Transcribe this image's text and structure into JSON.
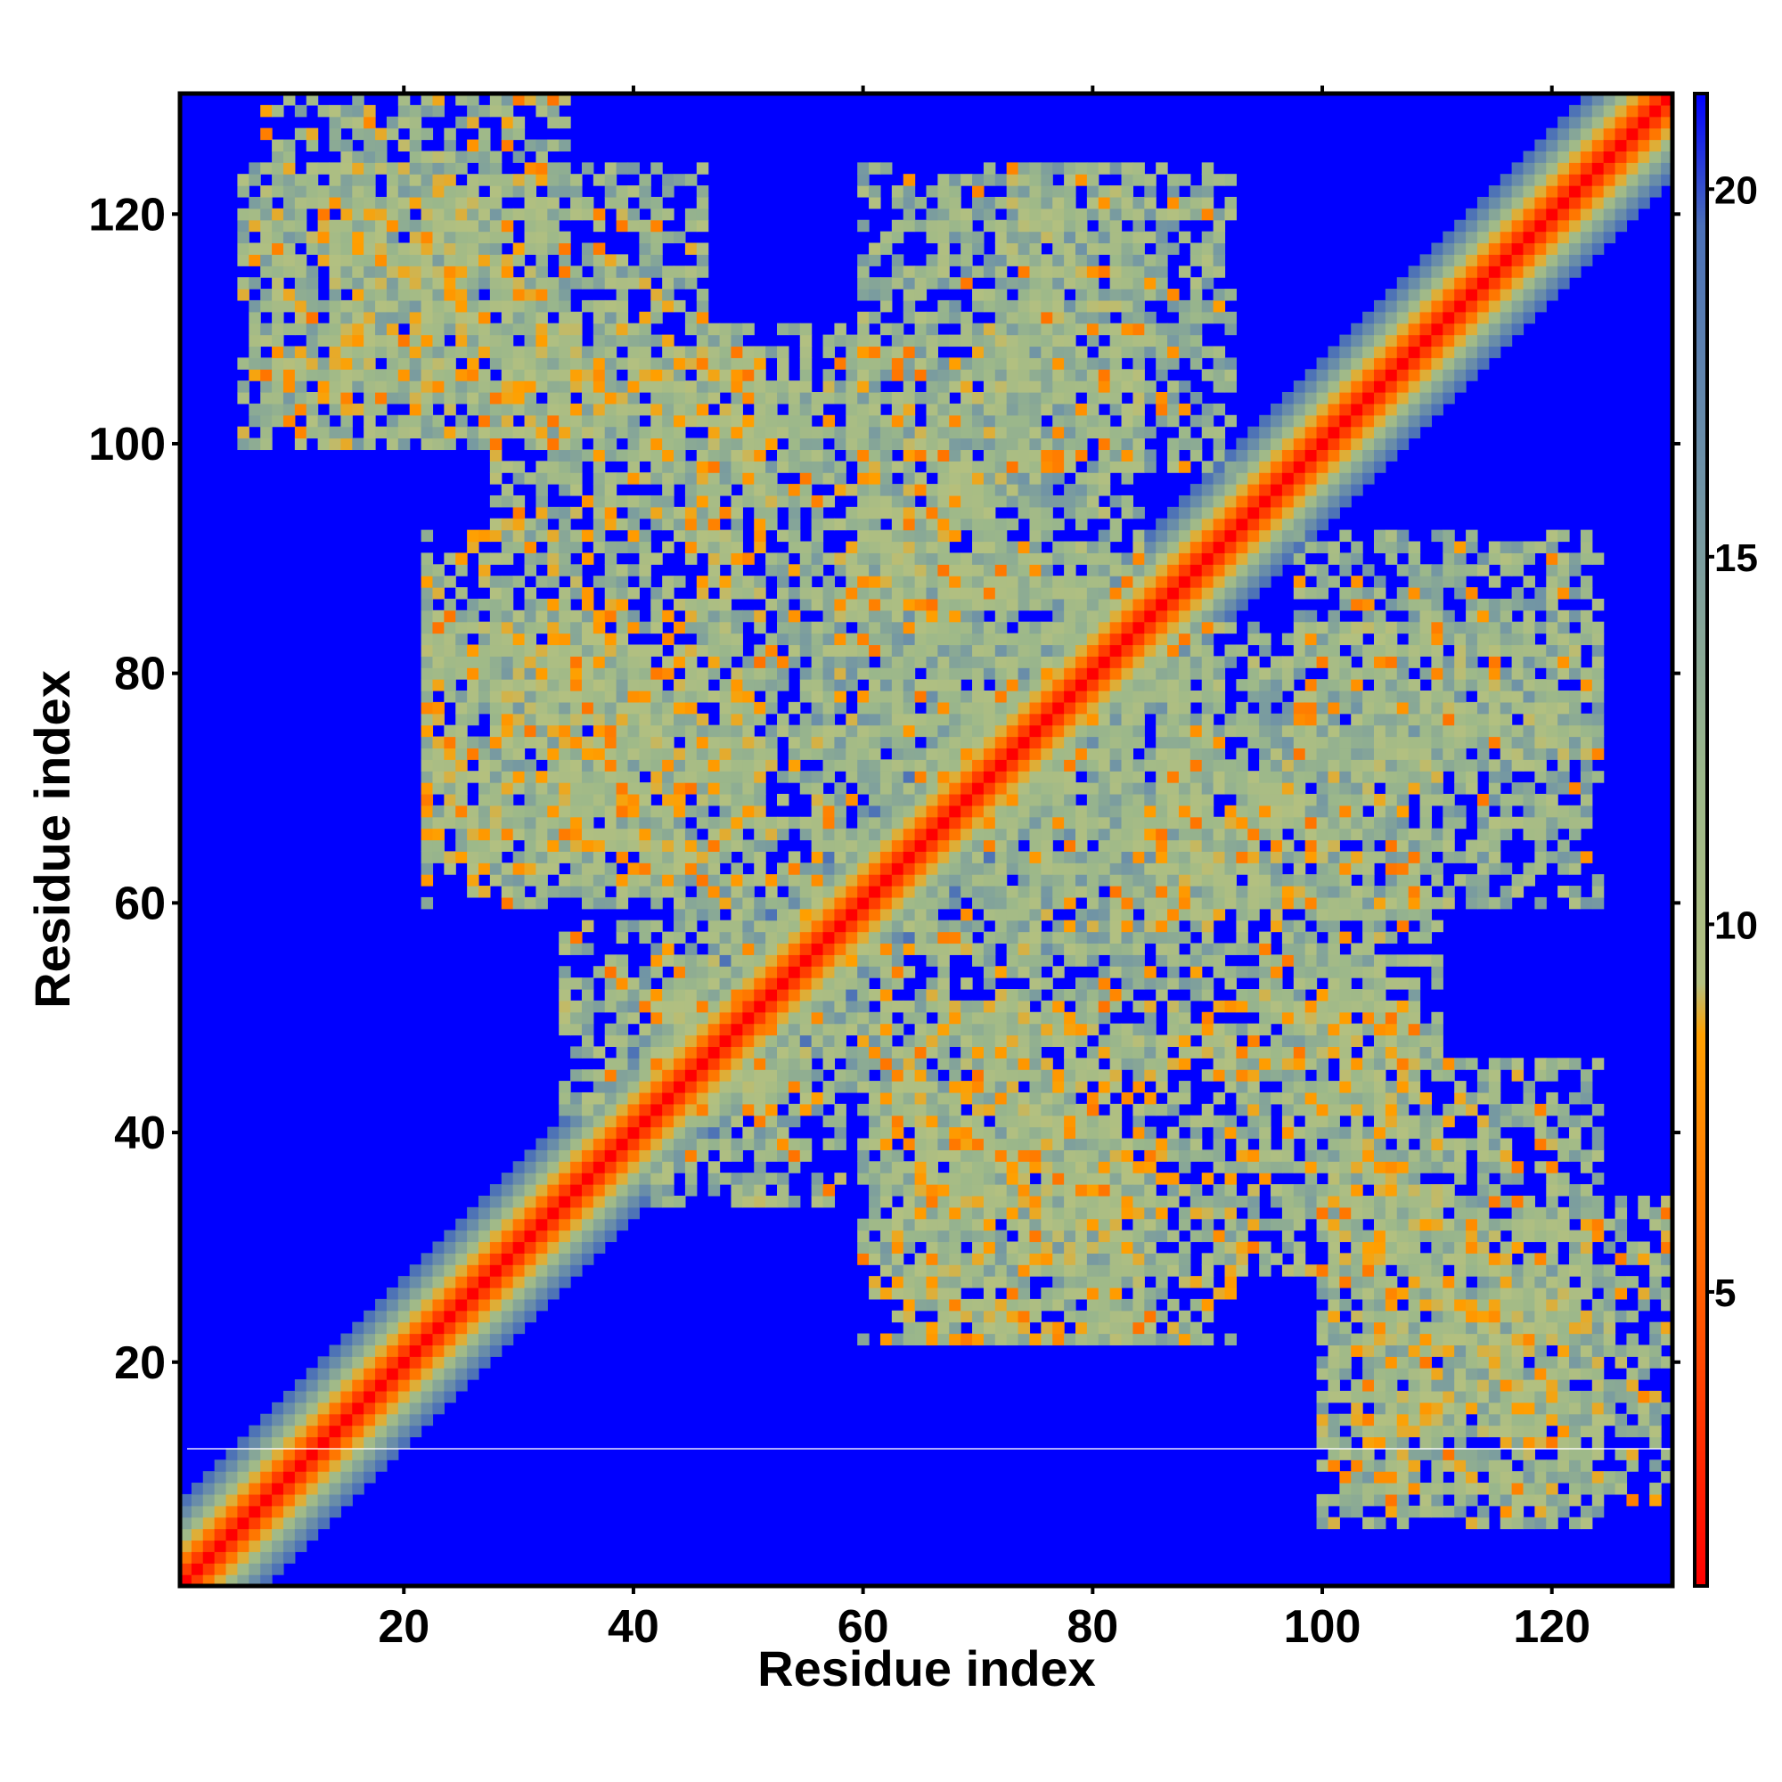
{
  "chart_data": {
    "type": "heatmap",
    "title": "",
    "xlabel": "Residue index",
    "ylabel": "Residue index",
    "xlim": [
      1,
      130
    ],
    "ylim": [
      1,
      130
    ],
    "xticks": [
      20,
      40,
      60,
      80,
      100,
      120
    ],
    "yticks": [
      20,
      40,
      60,
      80,
      100,
      120
    ],
    "grid": false,
    "colorbar": {
      "min": 1,
      "max": 21.3,
      "ticks": [
        5,
        10,
        15,
        20
      ],
      "stops": [
        {
          "value": 1,
          "color": "#ff0000"
        },
        {
          "value": 5.5,
          "color": "#ff6a00"
        },
        {
          "value": 8.5,
          "color": "#ffa000"
        },
        {
          "value": 9.2,
          "color": "#b3c080"
        },
        {
          "value": 12,
          "color": "#9cb88a"
        },
        {
          "value": 16,
          "color": "#6f93a6"
        },
        {
          "value": 19.5,
          "color": "#4b70b8"
        },
        {
          "value": 21.3,
          "color": "#0000ff"
        }
      ]
    },
    "background_value": 21.3,
    "colors": {
      "near": "#ff0000",
      "close": "#ff7f00",
      "mid": "#a8bd86",
      "far": "#6f93a6",
      "none": "#0000ff"
    },
    "contact_regions": [
      {
        "x": [
          1,
          130
        ],
        "y": [
          1,
          130
        ],
        "kind": "diagonal",
        "min_value": 1,
        "width": 7
      },
      {
        "x": [
          8,
          34
        ],
        "y": [
          100,
          130
        ],
        "kind": "antiparallel",
        "mean_value": 12
      },
      {
        "x": [
          28,
          52
        ],
        "y": [
          92,
          108
        ],
        "kind": "block",
        "mean_value": 11.5
      },
      {
        "x": [
          22,
          60
        ],
        "y": [
          62,
          85
        ],
        "kind": "block",
        "mean_value": 12
      },
      {
        "x": [
          34,
          62
        ],
        "y": [
          42,
          58
        ],
        "kind": "block",
        "mean_value": 12.5
      },
      {
        "x": [
          60,
          84
        ],
        "y": [
          86,
          124
        ],
        "kind": "block",
        "mean_value": 12.5
      },
      {
        "x": [
          60,
          92
        ],
        "y": [
          22,
          50
        ],
        "kind": "block",
        "mean_value": 11.5
      },
      {
        "x": [
          86,
          110
        ],
        "y": [
          46,
          72
        ],
        "kind": "block",
        "mean_value": 12
      },
      {
        "x": [
          100,
          124
        ],
        "y": [
          6,
          46
        ],
        "kind": "antiparallel",
        "mean_value": 12
      },
      {
        "x": [
          98,
          124
        ],
        "y": [
          72,
          92
        ],
        "kind": "block",
        "mean_value": 12.5
      },
      {
        "x": [
          60,
          90
        ],
        "y": [
          56,
          90
        ],
        "kind": "block",
        "mean_value": 13
      }
    ]
  }
}
